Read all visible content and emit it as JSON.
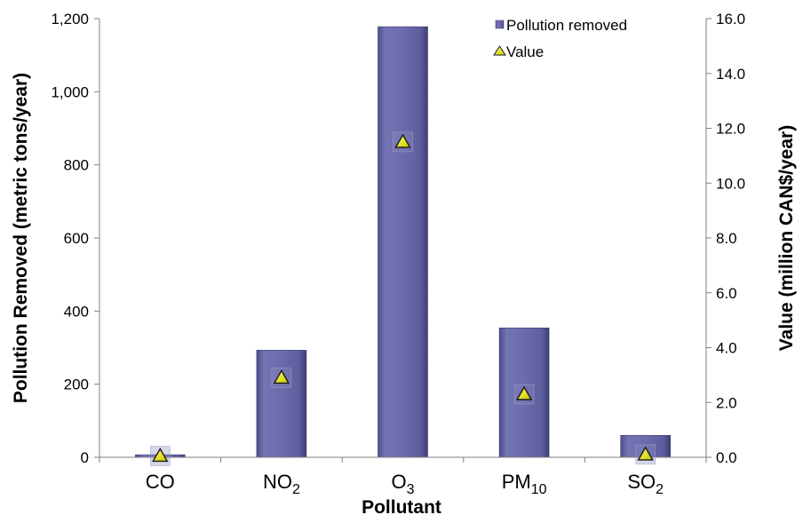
{
  "chart_data": {
    "type": "bar",
    "categories": [
      {
        "main": "CO",
        "sub": ""
      },
      {
        "main": "NO",
        "sub": "2"
      },
      {
        "main": "O",
        "sub": "3"
      },
      {
        "main": "PM",
        "sub": "10"
      },
      {
        "main": "SO",
        "sub": "2"
      }
    ],
    "series": [
      {
        "name": "Pollution removed",
        "axis": "left",
        "kind": "bar",
        "color": "#6a6aa8",
        "values": [
          7,
          293,
          1178,
          354,
          60
        ]
      },
      {
        "name": "Value",
        "axis": "right",
        "kind": "marker",
        "color": "#e6e600",
        "values": [
          0.05,
          2.9,
          11.5,
          2.3,
          0.1
        ]
      }
    ],
    "xlabel": "Pollutant",
    "ylabel": "Pollution Removed (metric tons/year)",
    "y2label": "Value (million CAN$/year)",
    "ylim": [
      0,
      1200
    ],
    "y2lim": [
      0,
      16
    ],
    "yticks": [
      "0",
      "200",
      "400",
      "600",
      "800",
      "1,000",
      "1,200"
    ],
    "y2ticks": [
      "0.0",
      "2.0",
      "4.0",
      "6.0",
      "8.0",
      "10.0",
      "12.0",
      "14.0",
      "16.0"
    ],
    "legend_position": "top-right",
    "grid": false
  }
}
